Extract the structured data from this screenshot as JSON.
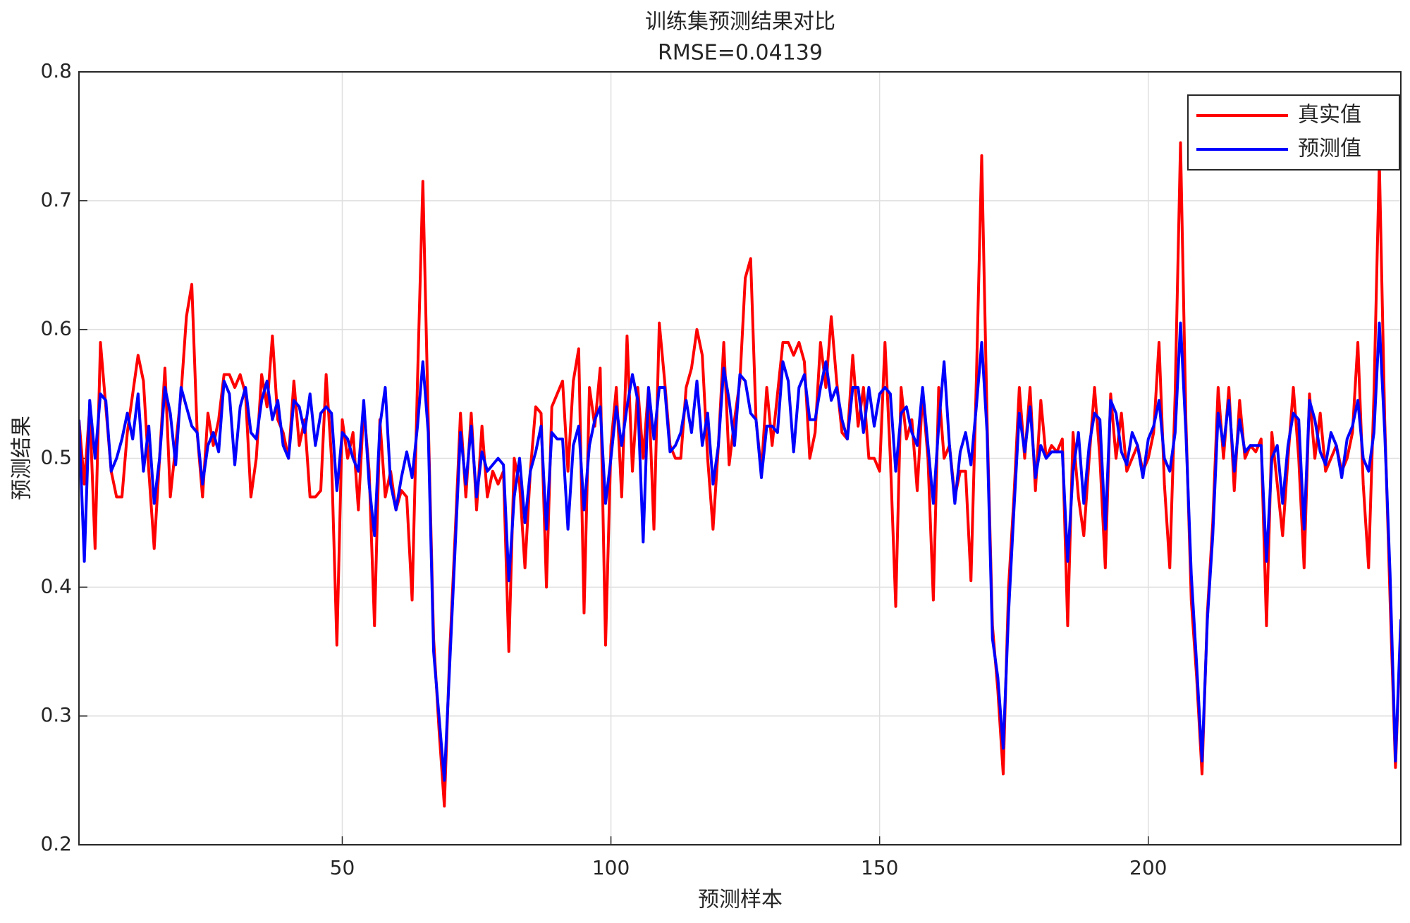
{
  "chart_data": {
    "type": "line",
    "title": "训练集预测结果对比",
    "subtitle": "RMSE=0.04139",
    "x_label": "预测样本",
    "y_label": "预测结果",
    "xlim": [
      1,
      247
    ],
    "ylim": [
      0.2,
      0.8
    ],
    "xticks": [
      50,
      100,
      150,
      200
    ],
    "yticks": [
      0.2,
      0.3,
      0.4,
      0.5,
      0.6,
      0.7,
      0.8
    ],
    "grid": true,
    "legend": "upper right",
    "x": [
      1,
      2,
      3,
      4,
      5,
      6,
      7,
      8,
      9,
      10,
      11,
      12,
      13,
      14,
      15,
      16,
      17,
      18,
      19,
      20,
      21,
      22,
      23,
      24,
      25,
      26,
      27,
      28,
      29,
      30,
      31,
      32,
      33,
      34,
      35,
      36,
      37,
      38,
      39,
      40,
      41,
      42,
      43,
      44,
      45,
      46,
      47,
      48,
      49,
      50,
      51,
      52,
      53,
      54,
      55,
      56,
      57,
      58,
      59,
      60,
      61,
      62,
      63,
      64,
      65,
      66,
      67,
      68,
      69,
      70,
      71,
      72,
      73,
      74,
      75,
      76,
      77,
      78,
      79,
      80,
      81,
      82,
      83,
      84,
      85,
      86,
      87,
      88,
      89,
      90,
      91,
      92,
      93,
      94,
      95,
      96,
      97,
      98,
      99,
      100,
      101,
      102,
      103,
      104,
      105,
      106,
      107,
      108,
      109,
      110,
      111,
      112,
      113,
      114,
      115,
      116,
      117,
      118,
      119,
      120,
      121,
      122,
      123,
      124,
      125,
      126,
      127,
      128,
      129,
      130,
      131,
      132,
      133,
      134,
      135,
      136,
      137,
      138,
      139,
      140,
      141,
      142,
      143,
      144,
      145,
      146,
      147,
      148,
      149,
      150,
      151,
      152,
      153,
      154,
      155,
      156,
      157,
      158,
      159,
      160,
      161,
      162,
      163,
      164,
      165,
      166,
      167,
      168,
      169,
      170,
      171,
      172,
      173,
      174,
      175,
      176,
      177,
      178,
      179,
      180,
      181,
      182,
      183,
      184,
      185,
      186,
      187,
      188,
      189,
      190,
      191,
      192,
      193,
      194,
      195,
      196,
      197,
      198,
      199,
      200,
      201,
      202,
      203,
      204,
      205,
      206,
      207,
      208,
      209,
      210,
      211,
      212,
      213,
      214,
      215,
      216,
      217,
      218,
      219,
      220,
      221,
      222,
      223,
      224,
      225,
      226,
      227,
      228,
      229,
      230,
      231,
      232,
      233,
      234,
      235,
      236,
      237,
      238,
      239,
      240,
      241,
      242,
      243,
      244,
      245,
      246,
      247
    ],
    "series": [
      {
        "name": "真实值",
        "color": "#ff0000",
        "values": [
          0.53,
          0.48,
          0.54,
          0.43,
          0.59,
          0.54,
          0.49,
          0.47,
          0.47,
          0.52,
          0.55,
          0.58,
          0.56,
          0.49,
          0.43,
          0.5,
          0.57,
          0.47,
          0.51,
          0.55,
          0.61,
          0.635,
          0.52,
          0.47,
          0.535,
          0.51,
          0.53,
          0.565,
          0.565,
          0.555,
          0.565,
          0.55,
          0.47,
          0.5,
          0.565,
          0.54,
          0.595,
          0.53,
          0.52,
          0.5,
          0.56,
          0.51,
          0.53,
          0.47,
          0.47,
          0.475,
          0.565,
          0.5,
          0.355,
          0.53,
          0.5,
          0.52,
          0.46,
          0.54,
          0.49,
          0.37,
          0.53,
          0.47,
          0.49,
          0.46,
          0.475,
          0.47,
          0.39,
          0.56,
          0.715,
          0.53,
          0.36,
          0.29,
          0.23,
          0.35,
          0.44,
          0.535,
          0.47,
          0.535,
          0.46,
          0.525,
          0.47,
          0.49,
          0.48,
          0.49,
          0.35,
          0.5,
          0.48,
          0.415,
          0.49,
          0.54,
          0.535,
          0.4,
          0.54,
          0.55,
          0.56,
          0.49,
          0.56,
          0.585,
          0.38,
          0.555,
          0.525,
          0.57,
          0.355,
          0.51,
          0.555,
          0.47,
          0.595,
          0.49,
          0.555,
          0.5,
          0.555,
          0.445,
          0.605,
          0.56,
          0.51,
          0.5,
          0.5,
          0.555,
          0.57,
          0.6,
          0.58,
          0.5,
          0.445,
          0.51,
          0.59,
          0.495,
          0.53,
          0.56,
          0.64,
          0.655,
          0.53,
          0.49,
          0.555,
          0.51,
          0.55,
          0.59,
          0.59,
          0.58,
          0.59,
          0.575,
          0.5,
          0.52,
          0.59,
          0.555,
          0.61,
          0.56,
          0.52,
          0.515,
          0.58,
          0.525,
          0.555,
          0.5,
          0.5,
          0.49,
          0.59,
          0.5,
          0.385,
          0.555,
          0.515,
          0.53,
          0.475,
          0.55,
          0.5,
          0.39,
          0.555,
          0.5,
          0.51,
          0.47,
          0.49,
          0.49,
          0.405,
          0.56,
          0.735,
          0.53,
          0.37,
          0.32,
          0.255,
          0.4,
          0.47,
          0.555,
          0.5,
          0.555,
          0.475,
          0.545,
          0.5,
          0.51,
          0.505,
          0.515,
          0.37,
          0.52,
          0.47,
          0.44,
          0.5,
          0.555,
          0.5,
          0.415,
          0.55,
          0.5,
          0.535,
          0.49,
          0.5,
          0.51,
          0.49,
          0.5,
          0.52,
          0.59,
          0.48,
          0.415,
          0.55,
          0.745,
          0.53,
          0.39,
          0.33,
          0.255,
          0.38,
          0.45,
          0.555,
          0.5,
          0.555,
          0.475,
          0.545,
          0.5,
          0.51,
          0.505,
          0.515,
          0.37,
          0.52,
          0.48,
          0.44,
          0.5,
          0.555,
          0.5,
          0.415,
          0.55,
          0.5,
          0.535,
          0.49,
          0.5,
          0.51,
          0.49,
          0.5,
          0.52,
          0.59,
          0.48,
          0.415,
          0.55,
          0.73,
          0.53,
          0.39,
          0.26,
          0.37
        ]
      },
      {
        "name": "预测值",
        "color": "#0000ff",
        "values": [
          0.53,
          0.42,
          0.545,
          0.5,
          0.55,
          0.545,
          0.49,
          0.5,
          0.515,
          0.535,
          0.515,
          0.55,
          0.49,
          0.525,
          0.465,
          0.5,
          0.555,
          0.535,
          0.495,
          0.555,
          0.54,
          0.525,
          0.52,
          0.48,
          0.51,
          0.52,
          0.505,
          0.56,
          0.55,
          0.495,
          0.54,
          0.555,
          0.52,
          0.515,
          0.545,
          0.56,
          0.53,
          0.545,
          0.51,
          0.5,
          0.545,
          0.54,
          0.52,
          0.55,
          0.51,
          0.535,
          0.54,
          0.535,
          0.475,
          0.52,
          0.515,
          0.5,
          0.49,
          0.545,
          0.48,
          0.44,
          0.525,
          0.555,
          0.48,
          0.46,
          0.485,
          0.505,
          0.485,
          0.525,
          0.575,
          0.52,
          0.35,
          0.3,
          0.25,
          0.34,
          0.43,
          0.52,
          0.48,
          0.525,
          0.47,
          0.505,
          0.49,
          0.495,
          0.5,
          0.495,
          0.405,
          0.47,
          0.5,
          0.45,
          0.49,
          0.505,
          0.525,
          0.445,
          0.52,
          0.515,
          0.515,
          0.445,
          0.51,
          0.525,
          0.46,
          0.51,
          0.53,
          0.54,
          0.465,
          0.5,
          0.54,
          0.51,
          0.54,
          0.565,
          0.545,
          0.435,
          0.555,
          0.515,
          0.555,
          0.555,
          0.505,
          0.51,
          0.52,
          0.545,
          0.52,
          0.56,
          0.51,
          0.535,
          0.48,
          0.51,
          0.57,
          0.545,
          0.51,
          0.565,
          0.56,
          0.535,
          0.53,
          0.485,
          0.525,
          0.525,
          0.52,
          0.575,
          0.56,
          0.505,
          0.555,
          0.565,
          0.53,
          0.53,
          0.555,
          0.575,
          0.545,
          0.555,
          0.53,
          0.515,
          0.555,
          0.555,
          0.52,
          0.555,
          0.525,
          0.55,
          0.555,
          0.55,
          0.49,
          0.535,
          0.54,
          0.52,
          0.51,
          0.555,
          0.51,
          0.465,
          0.525,
          0.575,
          0.51,
          0.465,
          0.505,
          0.52,
          0.495,
          0.54,
          0.59,
          0.52,
          0.36,
          0.33,
          0.275,
          0.38,
          0.46,
          0.535,
          0.505,
          0.54,
          0.485,
          0.51,
          0.5,
          0.505,
          0.505,
          0.505,
          0.42,
          0.49,
          0.52,
          0.465,
          0.51,
          0.535,
          0.53,
          0.445,
          0.545,
          0.535,
          0.505,
          0.495,
          0.52,
          0.51,
          0.485,
          0.515,
          0.525,
          0.545,
          0.5,
          0.49,
          0.52,
          0.605,
          0.52,
          0.41,
          0.34,
          0.265,
          0.375,
          0.44,
          0.535,
          0.51,
          0.545,
          0.49,
          0.53,
          0.505,
          0.51,
          0.51,
          0.51,
          0.42,
          0.5,
          0.51,
          0.465,
          0.51,
          0.535,
          0.53,
          0.445,
          0.545,
          0.53,
          0.505,
          0.495,
          0.52,
          0.51,
          0.485,
          0.515,
          0.525,
          0.545,
          0.5,
          0.49,
          0.52,
          0.605,
          0.52,
          0.41,
          0.265,
          0.375
        ]
      }
    ]
  }
}
